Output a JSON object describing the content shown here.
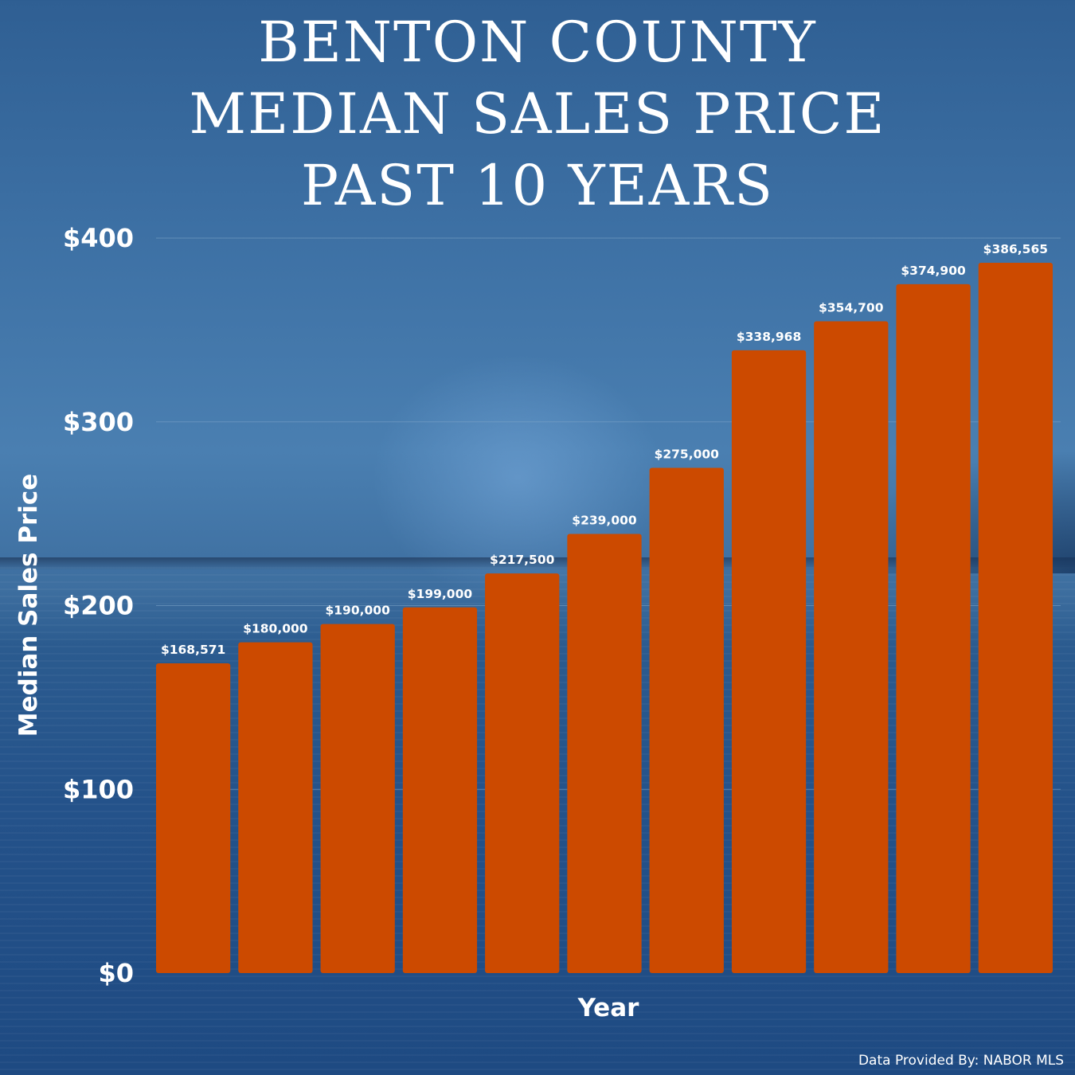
{
  "title_lines": [
    "BENTON COUNTY",
    "MEDIAN SALES PRICE",
    "PAST 10 YEARS"
  ],
  "credit": "Data Provided By: NABOR MLS",
  "colors": {
    "bar": "#cc4a00",
    "text": "#ffffff",
    "gridline": "#7fa5c9"
  },
  "chart_data": {
    "type": "bar",
    "title": "BENTON COUNTY MEDIAN SALES PRICE PAST 10 YEARS",
    "xlabel": "Year",
    "ylabel": "Median Sales Price",
    "ylim": [
      0,
      400
    ],
    "yticks": [
      0,
      100,
      200,
      300,
      400
    ],
    "ytick_labels": [
      "$0",
      "$100",
      "$200",
      "$300",
      "$400"
    ],
    "grid": true,
    "values": [
      168.571,
      180,
      190,
      199,
      217.5,
      239,
      275,
      338.968,
      354.7,
      374.9,
      386.565
    ],
    "data_labels": [
      "$168,571",
      "$180,000",
      "$190,000",
      "$199,000",
      "$217,500",
      "$239,000",
      "$275,000",
      "$338,968",
      "$354,700",
      "$374,900",
      "$386,565"
    ]
  }
}
